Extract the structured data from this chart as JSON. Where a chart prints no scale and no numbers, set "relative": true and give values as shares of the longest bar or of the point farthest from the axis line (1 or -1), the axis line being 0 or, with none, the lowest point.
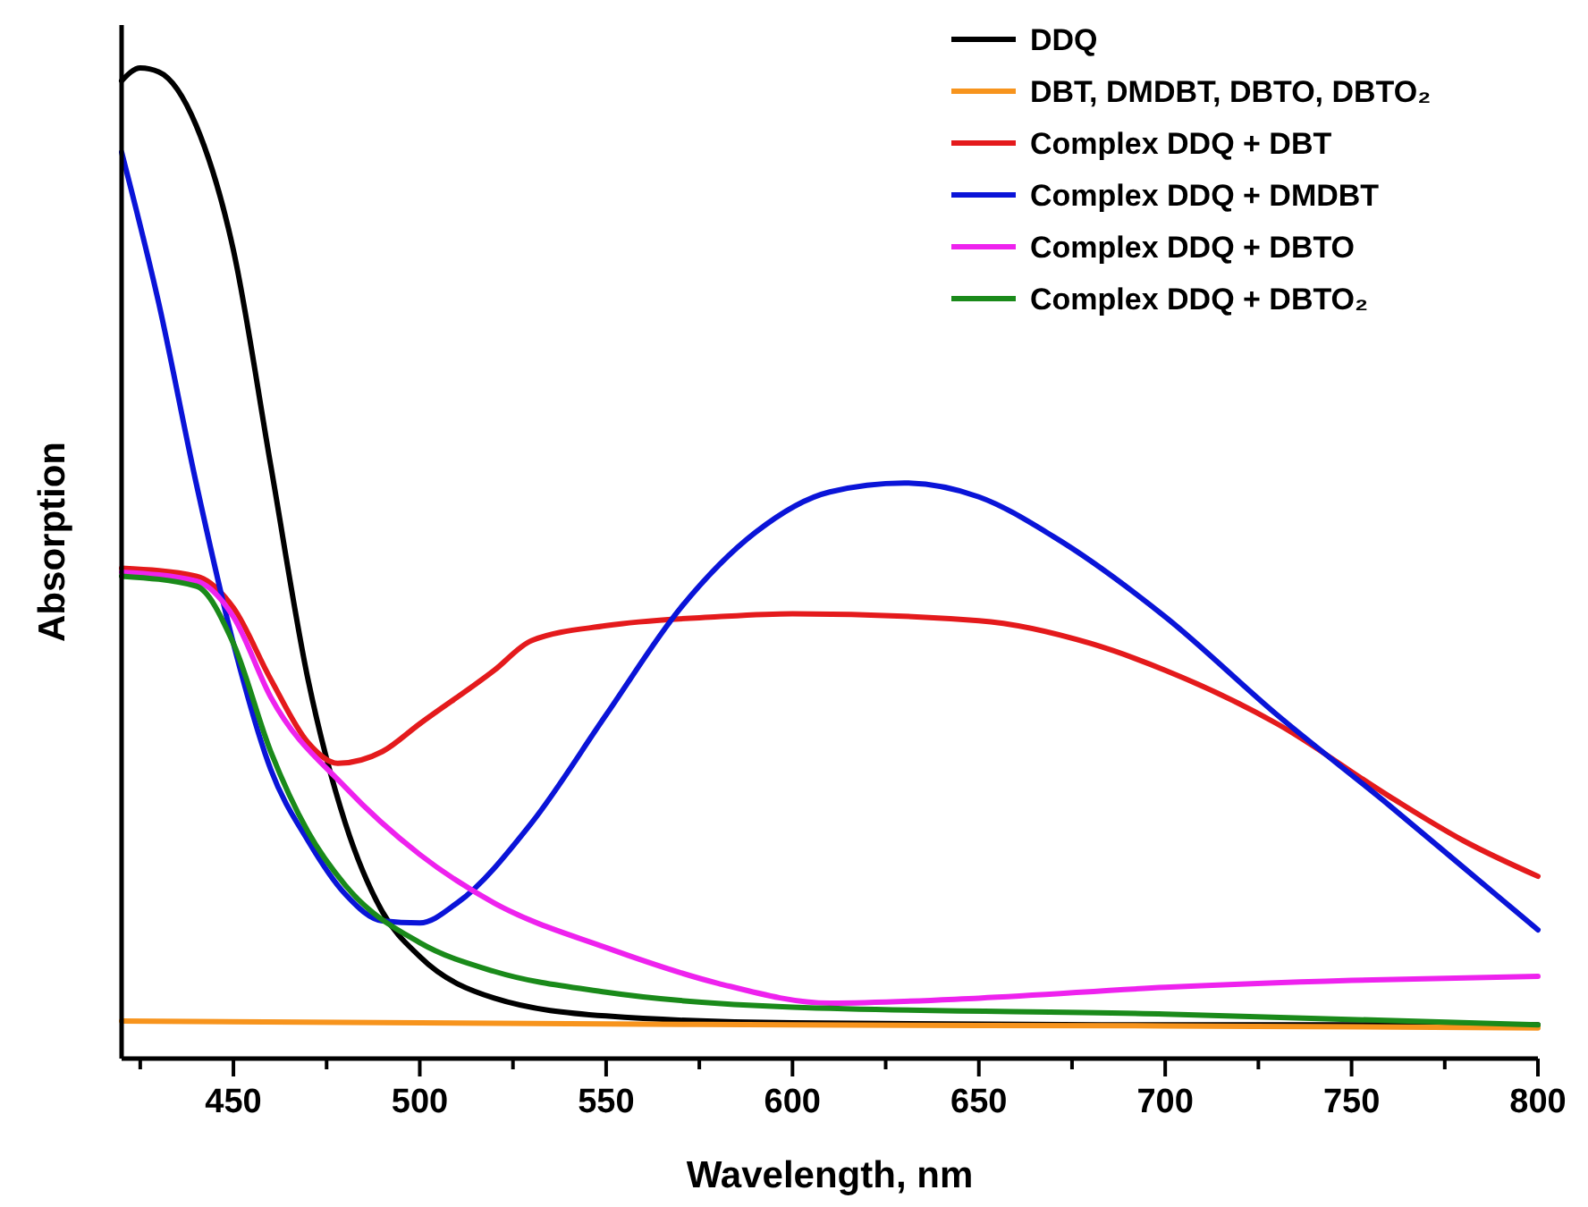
{
  "chart_data": {
    "type": "line",
    "xlabel": "Wavelength, nm",
    "ylabel": "Absorption",
    "relative": true,
    "xlim": [
      420,
      800
    ],
    "xticks": [
      {
        "value": 425,
        "label": null
      },
      450,
      {
        "value": 475,
        "label": null
      },
      500,
      {
        "value": 525,
        "label": null
      },
      550,
      {
        "value": 575,
        "label": null
      },
      600,
      {
        "value": 625,
        "label": null
      },
      650,
      {
        "value": 675,
        "label": null
      },
      700,
      {
        "value": 725,
        "label": null
      },
      750,
      {
        "value": 775,
        "label": null
      },
      800
    ],
    "legend": "top right",
    "grid": false,
    "marker": "none",
    "line_style": "solid",
    "series": [
      {
        "name": "DDQ",
        "color": "#000000",
        "x": [
          420,
          425,
          430,
          440,
          450,
          460,
          470,
          480,
          490,
          500,
          520,
          550,
          600,
          700,
          800
        ],
        "values": [
          0.987,
          1.0,
          0.996,
          0.942,
          0.816,
          0.599,
          0.383,
          0.238,
          0.148,
          0.103,
          0.061,
          0.043,
          0.036,
          0.034,
          0.034
        ]
      },
      {
        "name": "DBT, DMDBT, DBTO, DBTO₂",
        "color": "#f7941d",
        "x": [
          420,
          500,
          600,
          700,
          800
        ],
        "values": [
          0.038,
          0.036,
          0.034,
          0.033,
          0.031
        ]
      },
      {
        "name": "Complex DDQ + DBT",
        "color": "#e41a1c",
        "x": [
          420,
          440,
          450,
          460,
          470,
          478,
          490,
          500,
          520,
          530,
          550,
          580,
          600,
          650,
          680,
          700,
          730,
          760,
          780,
          800
        ],
        "values": [
          0.495,
          0.487,
          0.455,
          0.383,
          0.319,
          0.298,
          0.31,
          0.338,
          0.392,
          0.422,
          0.437,
          0.446,
          0.449,
          0.442,
          0.419,
          0.392,
          0.338,
          0.265,
          0.22,
          0.184
        ]
      },
      {
        "name": "Complex DDQ + DMDBT",
        "color": "#0a14d8",
        "x": [
          420,
          430,
          440,
          450,
          460,
          470,
          480,
          490,
          500,
          510,
          530,
          550,
          570,
          590,
          610,
          630,
          650,
          670,
          700,
          730,
          760,
          780,
          800
        ],
        "values": [
          0.915,
          0.762,
          0.581,
          0.419,
          0.292,
          0.22,
          0.166,
          0.139,
          0.137,
          0.157,
          0.238,
          0.347,
          0.455,
          0.531,
          0.572,
          0.581,
          0.567,
          0.527,
          0.446,
          0.347,
          0.256,
          0.193,
          0.13
        ]
      },
      {
        "name": "Complex DDQ + DBTO",
        "color": "#ee22ee",
        "x": [
          420,
          440,
          450,
          460,
          480,
          500,
          520,
          550,
          580,
          610,
          650,
          700,
          750,
          800
        ],
        "values": [
          0.491,
          0.482,
          0.446,
          0.365,
          0.274,
          0.206,
          0.157,
          0.112,
          0.076,
          0.056,
          0.061,
          0.072,
          0.079,
          0.083
        ]
      },
      {
        "name": "Complex DDQ + DBTO₂",
        "color": "#1a8a1a",
        "x": [
          420,
          440,
          450,
          460,
          470,
          480,
          500,
          520,
          550,
          600,
          700,
          800
        ],
        "values": [
          0.487,
          0.477,
          0.419,
          0.31,
          0.229,
          0.175,
          0.117,
          0.088,
          0.067,
          0.052,
          0.045,
          0.034
        ]
      }
    ]
  }
}
